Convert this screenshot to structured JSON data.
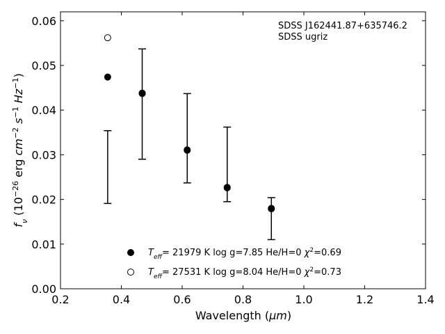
{
  "chart_data": {
    "type": "scatter",
    "object": "SDSS J162441.87+635746.2",
    "survey": "SDSS ugriz",
    "xlabel": "Wavelength",
    "xlabel_unit": "μm",
    "ylabel": {
      "symbol": "f",
      "symbol_sub": "ν",
      "scale_base": "10",
      "scale_exp": "−26",
      "unit_erg": "erg",
      "unit_cm": "cm",
      "unit_cm_exp": "−2",
      "unit_s": "s",
      "unit_s_exp": "−1",
      "unit_hz": "Hz",
      "unit_hz_exp": "−1"
    },
    "xlim": [
      0.2,
      1.4
    ],
    "ylim": [
      0.0,
      0.062
    ],
    "xticks": [
      "0.2",
      "0.4",
      "0.6",
      "0.8",
      "1.0",
      "1.2",
      "1.4"
    ],
    "xtick_values": [
      0.2,
      0.4,
      0.6,
      0.8,
      1.0,
      1.2,
      1.4
    ],
    "yticks": [
      "0.00",
      "0.01",
      "0.02",
      "0.03",
      "0.04",
      "0.05",
      "0.06"
    ],
    "ytick_values": [
      0.0,
      0.01,
      0.02,
      0.03,
      0.04,
      0.05,
      0.06
    ],
    "grid": false,
    "legend_position": "bottom-center",
    "observed": [
      {
        "x": 0.3551,
        "low": 0.0191,
        "high": 0.0354
      },
      {
        "x": 0.4686,
        "low": 0.029,
        "high": 0.0537
      },
      {
        "x": 0.6166,
        "low": 0.0237,
        "high": 0.0437
      },
      {
        "x": 0.748,
        "low": 0.0195,
        "high": 0.0362
      },
      {
        "x": 0.8932,
        "low": 0.011,
        "high": 0.0204
      }
    ],
    "series": [
      {
        "marker": "filled",
        "teff_value": "21979",
        "logg": "7.85",
        "hehratio": "0",
        "chi2": "0.69",
        "points": [
          {
            "x": 0.3551,
            "y": 0.0474
          },
          {
            "x": 0.4686,
            "y": 0.0438
          },
          {
            "x": 0.6166,
            "y": 0.031
          },
          {
            "x": 0.748,
            "y": 0.0227
          },
          {
            "x": 0.8932,
            "y": 0.018
          }
        ]
      },
      {
        "marker": "open",
        "teff_value": "27531",
        "logg": "8.04",
        "hehratio": "0",
        "chi2": "0.73",
        "points": [
          {
            "x": 0.3551,
            "y": 0.0562
          },
          {
            "x": 0.4686,
            "y": 0.0437
          },
          {
            "x": 0.6166,
            "y": 0.0311
          },
          {
            "x": 0.748,
            "y": 0.0226
          },
          {
            "x": 0.8932,
            "y": 0.0179
          }
        ]
      }
    ],
    "legend_labels": {
      "teff": "T",
      "teff_sub": "eff",
      "unit_k": "K",
      "logg": "log g",
      "hehe": "He/H",
      "chi": "χ",
      "chi_exp": "2"
    }
  }
}
